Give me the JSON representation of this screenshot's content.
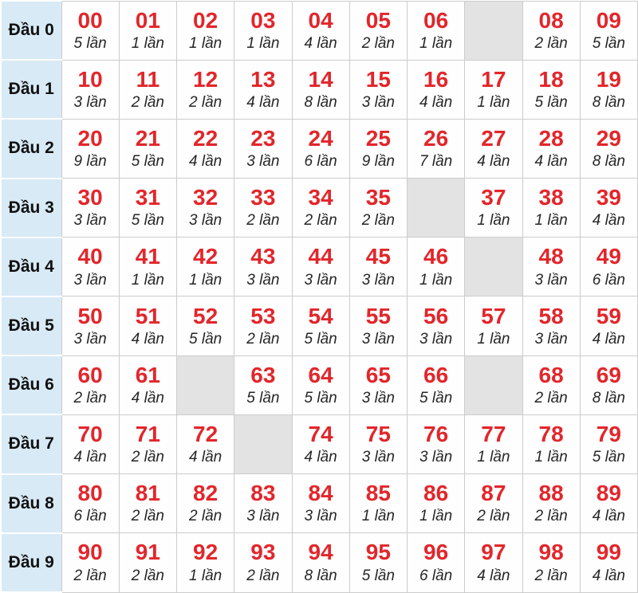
{
  "colors": {
    "number_red": "#e2262b",
    "row_header_blue": "#d8eaf6",
    "empty_cell_gray": "#e3e3e3",
    "border_gray": "#cccccc"
  },
  "chart_data": {
    "type": "table",
    "title": "",
    "row_header_prefix": "Đầu",
    "unit_label": "lần",
    "row_labels": [
      "Đầu 0",
      "Đầu 1",
      "Đầu 2",
      "Đầu 3",
      "Đầu 4",
      "Đầu 5",
      "Đầu 6",
      "Đầu 7",
      "Đầu 8",
      "Đầu 9"
    ],
    "numbers": [
      [
        "00",
        "01",
        "02",
        "03",
        "04",
        "05",
        "06",
        null,
        "08",
        "09"
      ],
      [
        "10",
        "11",
        "12",
        "13",
        "14",
        "15",
        "16",
        "17",
        "18",
        "19"
      ],
      [
        "20",
        "21",
        "22",
        "23",
        "24",
        "25",
        "26",
        "27",
        "28",
        "29"
      ],
      [
        "30",
        "31",
        "32",
        "33",
        "34",
        "35",
        null,
        "37",
        "38",
        "39"
      ],
      [
        "40",
        "41",
        "42",
        "43",
        "44",
        "45",
        "46",
        null,
        "48",
        "49"
      ],
      [
        "50",
        "51",
        "52",
        "53",
        "54",
        "55",
        "56",
        "57",
        "58",
        "59"
      ],
      [
        "60",
        "61",
        null,
        "63",
        "64",
        "65",
        "66",
        null,
        "68",
        "69"
      ],
      [
        "70",
        "71",
        "72",
        null,
        "74",
        "75",
        "76",
        "77",
        "78",
        "79"
      ],
      [
        "80",
        "81",
        "82",
        "83",
        "84",
        "85",
        "86",
        "87",
        "88",
        "89"
      ],
      [
        "90",
        "91",
        "92",
        "93",
        "94",
        "95",
        "96",
        "97",
        "98",
        "99"
      ]
    ],
    "counts": [
      [
        5,
        1,
        1,
        1,
        4,
        2,
        1,
        null,
        2,
        5
      ],
      [
        3,
        2,
        2,
        4,
        8,
        3,
        4,
        1,
        5,
        8
      ],
      [
        9,
        5,
        4,
        3,
        6,
        9,
        7,
        4,
        4,
        8
      ],
      [
        3,
        5,
        3,
        2,
        2,
        2,
        null,
        1,
        1,
        4
      ],
      [
        3,
        1,
        1,
        3,
        3,
        3,
        1,
        null,
        3,
        6
      ],
      [
        3,
        4,
        5,
        2,
        5,
        3,
        3,
        1,
        3,
        4
      ],
      [
        2,
        4,
        null,
        5,
        5,
        3,
        5,
        null,
        2,
        8
      ],
      [
        4,
        2,
        4,
        null,
        4,
        3,
        3,
        1,
        1,
        5
      ],
      [
        6,
        2,
        2,
        3,
        3,
        1,
        1,
        2,
        2,
        4
      ],
      [
        2,
        2,
        1,
        2,
        8,
        5,
        6,
        4,
        2,
        4
      ]
    ]
  },
  "table": {
    "rows": [
      {
        "label": "Đầu 0",
        "cells": [
          [
            "00",
            "5 lần"
          ],
          [
            "01",
            "1 lần"
          ],
          [
            "02",
            "1 lần"
          ],
          [
            "03",
            "1 lần"
          ],
          [
            "04",
            "4 lần"
          ],
          [
            "05",
            "2 lần"
          ],
          [
            "06",
            "1 lần"
          ],
          null,
          [
            "08",
            "2 lần"
          ],
          [
            "09",
            "5 lần"
          ]
        ]
      },
      {
        "label": "Đầu 1",
        "cells": [
          [
            "10",
            "3 lần"
          ],
          [
            "11",
            "2 lần"
          ],
          [
            "12",
            "2 lần"
          ],
          [
            "13",
            "4 lần"
          ],
          [
            "14",
            "8 lần"
          ],
          [
            "15",
            "3 lần"
          ],
          [
            "16",
            "4 lần"
          ],
          [
            "17",
            "1 lần"
          ],
          [
            "18",
            "5 lần"
          ],
          [
            "19",
            "8 lần"
          ]
        ]
      },
      {
        "label": "Đầu 2",
        "cells": [
          [
            "20",
            "9 lần"
          ],
          [
            "21",
            "5 lần"
          ],
          [
            "22",
            "4 lần"
          ],
          [
            "23",
            "3 lần"
          ],
          [
            "24",
            "6 lần"
          ],
          [
            "25",
            "9 lần"
          ],
          [
            "26",
            "7 lần"
          ],
          [
            "27",
            "4 lần"
          ],
          [
            "28",
            "4 lần"
          ],
          [
            "29",
            "8 lần"
          ]
        ]
      },
      {
        "label": "Đầu 3",
        "cells": [
          [
            "30",
            "3 lần"
          ],
          [
            "31",
            "5 lần"
          ],
          [
            "32",
            "3 lần"
          ],
          [
            "33",
            "2 lần"
          ],
          [
            "34",
            "2 lần"
          ],
          [
            "35",
            "2 lần"
          ],
          null,
          [
            "37",
            "1 lần"
          ],
          [
            "38",
            "1 lần"
          ],
          [
            "39",
            "4 lần"
          ]
        ]
      },
      {
        "label": "Đầu 4",
        "cells": [
          [
            "40",
            "3 lần"
          ],
          [
            "41",
            "1 lần"
          ],
          [
            "42",
            "1 lần"
          ],
          [
            "43",
            "3 lần"
          ],
          [
            "44",
            "3 lần"
          ],
          [
            "45",
            "3 lần"
          ],
          [
            "46",
            "1 lần"
          ],
          null,
          [
            "48",
            "3 lần"
          ],
          [
            "49",
            "6 lần"
          ]
        ]
      },
      {
        "label": "Đầu 5",
        "cells": [
          [
            "50",
            "3 lần"
          ],
          [
            "51",
            "4 lần"
          ],
          [
            "52",
            "5 lần"
          ],
          [
            "53",
            "2 lần"
          ],
          [
            "54",
            "5 lần"
          ],
          [
            "55",
            "3 lần"
          ],
          [
            "56",
            "3 lần"
          ],
          [
            "57",
            "1 lần"
          ],
          [
            "58",
            "3 lần"
          ],
          [
            "59",
            "4 lần"
          ]
        ]
      },
      {
        "label": "Đầu 6",
        "cells": [
          [
            "60",
            "2 lần"
          ],
          [
            "61",
            "4 lần"
          ],
          null,
          [
            "63",
            "5 lần"
          ],
          [
            "64",
            "5 lần"
          ],
          [
            "65",
            "3 lần"
          ],
          [
            "66",
            "5 lần"
          ],
          null,
          [
            "68",
            "2 lần"
          ],
          [
            "69",
            "8 lần"
          ]
        ]
      },
      {
        "label": "Đầu 7",
        "cells": [
          [
            "70",
            "4 lần"
          ],
          [
            "71",
            "2 lần"
          ],
          [
            "72",
            "4 lần"
          ],
          null,
          [
            "74",
            "4 lần"
          ],
          [
            "75",
            "3 lần"
          ],
          [
            "76",
            "3 lần"
          ],
          [
            "77",
            "1 lần"
          ],
          [
            "78",
            "1 lần"
          ],
          [
            "79",
            "5 lần"
          ]
        ]
      },
      {
        "label": "Đầu 8",
        "cells": [
          [
            "80",
            "6 lần"
          ],
          [
            "81",
            "2 lần"
          ],
          [
            "82",
            "2 lần"
          ],
          [
            "83",
            "3 lần"
          ],
          [
            "84",
            "3 lần"
          ],
          [
            "85",
            "1 lần"
          ],
          [
            "86",
            "1 lần"
          ],
          [
            "87",
            "2 lần"
          ],
          [
            "88",
            "2 lần"
          ],
          [
            "89",
            "4 lần"
          ]
        ]
      },
      {
        "label": "Đầu 9",
        "cells": [
          [
            "90",
            "2 lần"
          ],
          [
            "91",
            "2 lần"
          ],
          [
            "92",
            "1 lần"
          ],
          [
            "93",
            "2 lần"
          ],
          [
            "94",
            "8 lần"
          ],
          [
            "95",
            "5 lần"
          ],
          [
            "96",
            "6 lần"
          ],
          [
            "97",
            "4 lần"
          ],
          [
            "98",
            "2 lần"
          ],
          [
            "99",
            "4 lần"
          ]
        ]
      }
    ]
  }
}
